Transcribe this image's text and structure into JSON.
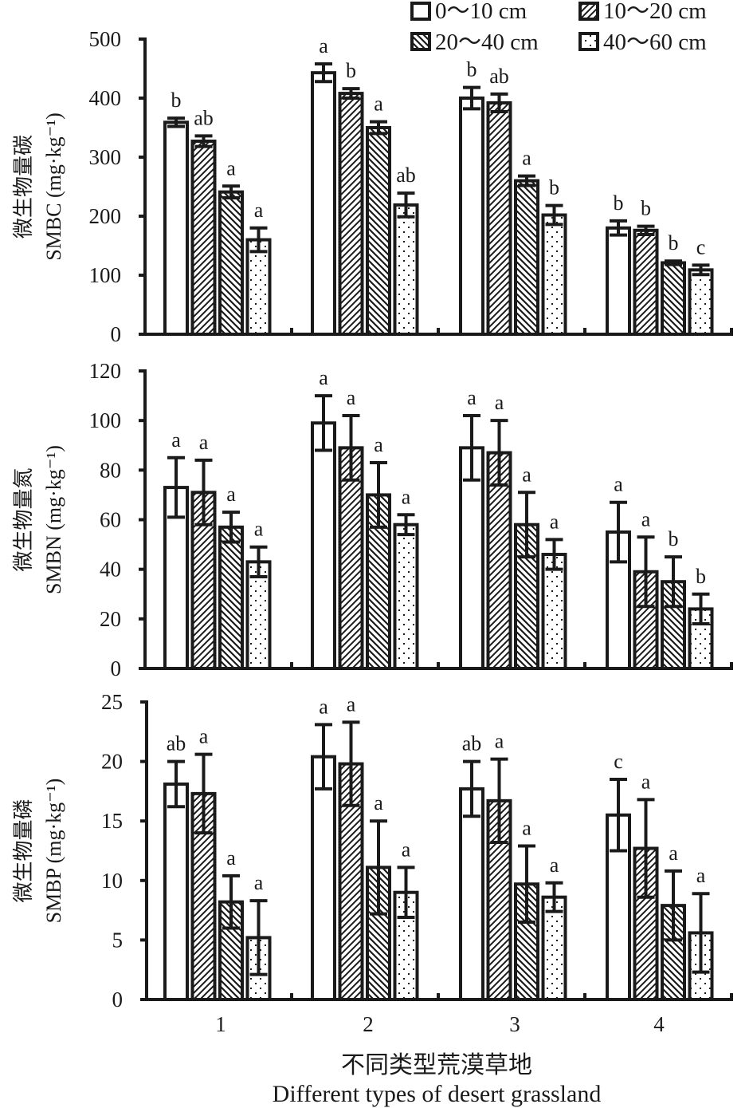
{
  "chart_data": {
    "type": "bar",
    "categories": [
      "1",
      "2",
      "3",
      "4"
    ],
    "xlabel_cn": "不同类型荒漠草地",
    "xlabel": "Different types of desert grassland",
    "legend": {
      "placement": "top-right",
      "entries": [
        "0～10 cm",
        "10～20 cm",
        "20～40 cm",
        "40～60 cm"
      ]
    },
    "series_names": [
      "0～10 cm",
      "10～20 cm",
      "20～40 cm",
      "40～60 cm"
    ],
    "panels": [
      {
        "name": "SMBC",
        "ylabel_cn": "微生物量碳",
        "ylabel": "SMBC (mg·kg⁻¹)",
        "ylabel_main": "SMBC (mg",
        "ylabel_unit_tail": "kg",
        "ylim": [
          0,
          500
        ],
        "yticks": [
          0,
          100,
          200,
          300,
          400,
          500
        ],
        "values": [
          [
            359,
            327,
            241,
            160
          ],
          [
            443,
            408,
            350,
            219
          ],
          [
            400,
            392,
            260,
            202
          ],
          [
            180,
            176,
            121,
            109
          ]
        ],
        "errors": [
          [
            7,
            9,
            10,
            20
          ],
          [
            15,
            8,
            10,
            20
          ],
          [
            18,
            15,
            8,
            16
          ],
          [
            12,
            7,
            3,
            8
          ]
        ],
        "letters": [
          [
            "b",
            "ab",
            "a",
            "a"
          ],
          [
            "a",
            "b",
            "a",
            "ab"
          ],
          [
            "b",
            "ab",
            "a",
            "b"
          ],
          [
            "b",
            "b",
            "b",
            "c"
          ]
        ]
      },
      {
        "name": "SMBN",
        "ylabel_cn": "微生物量氮",
        "ylabel": "SMBN (mg·kg⁻¹)",
        "ylabel_main": "SMBN (mg",
        "ylabel_unit_tail": "kg",
        "ylim": [
          0,
          120
        ],
        "yticks": [
          0,
          20,
          40,
          60,
          80,
          100,
          120
        ],
        "values": [
          [
            73,
            71,
            57,
            43
          ],
          [
            99,
            89,
            70,
            58
          ],
          [
            89,
            87,
            58,
            46
          ],
          [
            55,
            39,
            35,
            24
          ]
        ],
        "errors": [
          [
            12,
            13,
            6,
            6
          ],
          [
            11,
            13,
            13,
            4
          ],
          [
            13,
            13,
            13,
            6
          ],
          [
            12,
            14,
            10,
            6
          ]
        ],
        "letters": [
          [
            "a",
            "a",
            "a",
            "a"
          ],
          [
            "a",
            "a",
            "a",
            "a"
          ],
          [
            "a",
            "a",
            "a",
            "a"
          ],
          [
            "a",
            "a",
            "b",
            "b"
          ]
        ]
      },
      {
        "name": "SMBP",
        "ylabel_cn": "微生物量磷",
        "ylabel": "SMBP (mg·kg⁻¹)",
        "ylabel_main": "SMBP (mg",
        "ylabel_unit_tail": "kg",
        "ylim": [
          0,
          25
        ],
        "yticks": [
          0,
          5,
          10,
          15,
          20,
          25
        ],
        "values": [
          [
            18.1,
            17.3,
            8.2,
            5.2
          ],
          [
            20.4,
            19.8,
            11.1,
            9.0
          ],
          [
            17.7,
            16.7,
            9.7,
            8.6
          ],
          [
            15.5,
            12.7,
            7.9,
            5.6
          ]
        ],
        "errors": [
          [
            1.9,
            3.3,
            2.2,
            3.1
          ],
          [
            2.7,
            3.5,
            3.9,
            2.1
          ],
          [
            2.3,
            3.5,
            3.2,
            1.2
          ],
          [
            3.0,
            4.1,
            2.9,
            3.3
          ]
        ],
        "letters": [
          [
            "ab",
            "a",
            "a",
            "a"
          ],
          [
            "a",
            "a",
            "a",
            "a"
          ],
          [
            "ab",
            "a",
            "a",
            "a"
          ],
          [
            "c",
            "a",
            "a",
            "a"
          ]
        ]
      }
    ],
    "grid": false,
    "colors": {
      "ink": "#1a1a1a",
      "fill": "#ffffff"
    }
  }
}
